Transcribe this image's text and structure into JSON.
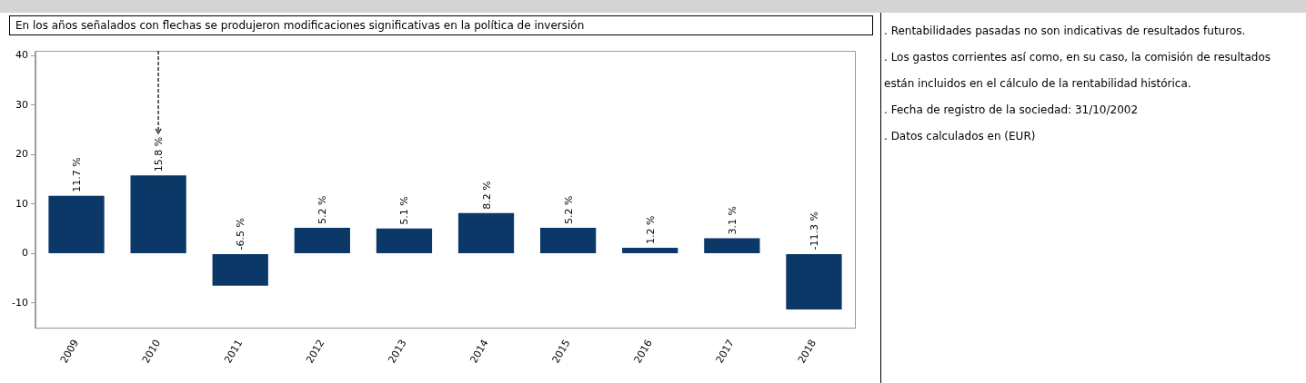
{
  "chart_data": {
    "type": "bar",
    "title": "En los años señalados con flechas se produjeron modificaciones significativas en la política de inversión",
    "categories": [
      "2009",
      "2010",
      "2011",
      "2012",
      "2013",
      "2014",
      "2015",
      "2016",
      "2017",
      "2018"
    ],
    "values": [
      11.7,
      15.8,
      -6.5,
      5.2,
      5.1,
      8.2,
      5.2,
      1.2,
      3.1,
      -11.3
    ],
    "value_labels": [
      "11.7 %",
      "15.8 %",
      "-6.5 %",
      "5.2 %",
      "5.1 %",
      "8.2 %",
      "5.2 %",
      "1.2 %",
      "3.1 %",
      "-11.3 %"
    ],
    "color": "#0b3866",
    "ylim": [
      -15,
      41
    ],
    "yticks": [
      -10,
      0,
      10,
      20,
      30,
      40
    ],
    "ref_lines": [
      {
        "axis": "x",
        "value": "2010",
        "line_style": "dashed",
        "color": "#333333"
      }
    ],
    "annotations": [
      ". Rentabilidades pasadas no son indicativas de resultados futuros.",
      ". Los gastos corrientes así como, en su caso, la comisión de resultados están incluidos en el cálculo de la rentabilidad histórica.",
      ". Fecha de registro de la sociedad: 31/10/2002",
      ". Datos calculados en (EUR)"
    ]
  }
}
